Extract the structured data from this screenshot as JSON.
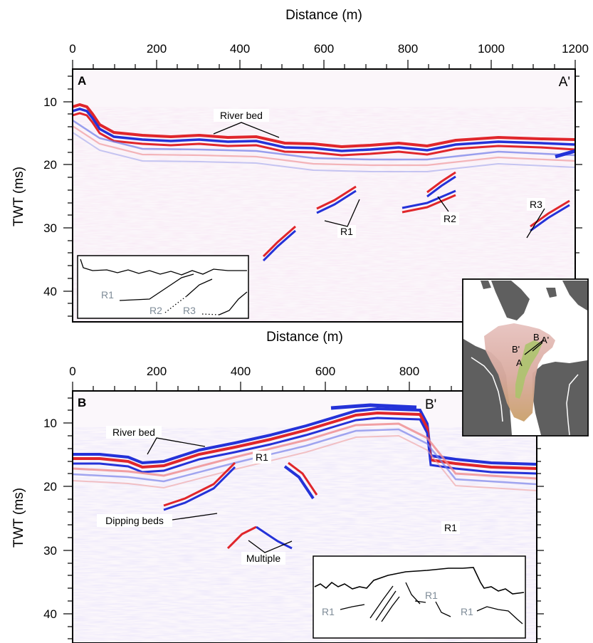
{
  "figure": {
    "panels": [
      {
        "id": "A",
        "label": "A",
        "end_label": "A'",
        "x_axis_title": "Distance (m)",
        "y_axis_title": "TWT (ms)",
        "x_ticks": [
          "0",
          "200",
          "400",
          "600",
          "800",
          "1000",
          "1200"
        ],
        "y_ticks": [
          "10",
          "20",
          "30",
          "40"
        ],
        "annotations": [
          "River bed",
          "R1",
          "R2",
          "R3"
        ],
        "inset_labels": [
          "R1",
          "R2",
          "R3"
        ]
      },
      {
        "id": "B",
        "label": "B",
        "end_label": "B'",
        "x_axis_title": "Distance (m)",
        "y_axis_title": "TWT (ms)",
        "x_ticks": [
          "0",
          "200",
          "400",
          "600",
          "800"
        ],
        "y_ticks": [
          "10",
          "20",
          "30",
          "40"
        ],
        "annotations": [
          "River bed",
          "R1",
          "Dipping beds",
          "Multiple",
          "R1"
        ],
        "inset_labels": [
          "R1",
          "R1",
          "R1"
        ]
      }
    ],
    "location_map": {
      "labels": [
        "B",
        "A'",
        "B'",
        "A"
      ]
    },
    "colors": {
      "positive_amplitude": "#e0262b",
      "negative_amplitude": "#2432d8",
      "inset_label": "#7f8c98",
      "map_land": "#5f5f5f",
      "map_water": "#ffffff"
    }
  }
}
